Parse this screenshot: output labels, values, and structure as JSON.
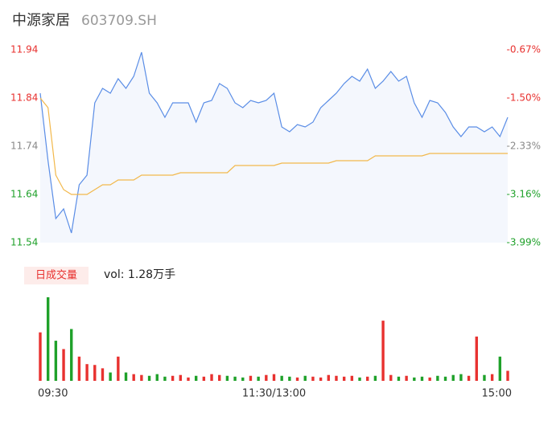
{
  "chart_data": {
    "type": "intraday",
    "title": "中源家居",
    "subtitle": "603709.SH",
    "volume_tag": "日成交量",
    "volume_label": "vol: 1.28万手",
    "xlim": [
      0,
      60
    ],
    "xticks": [
      {
        "value": 0,
        "label": "09:30"
      },
      {
        "value": 30,
        "label": "11:30/13:00"
      },
      {
        "value": 60,
        "label": "15:00"
      }
    ],
    "ylim": [
      11.54,
      11.94
    ],
    "yticks": [
      11.94,
      11.84,
      11.74,
      11.64,
      11.54
    ],
    "y2lim": [
      -3.99,
      -0.67
    ],
    "y2ticks": [
      {
        "value": -0.67,
        "label": "-0.67%"
      },
      {
        "value": -1.5,
        "label": "-1.50%"
      },
      {
        "value": -2.33,
        "label": "-2.33%"
      },
      {
        "value": -3.16,
        "label": "-3.16%"
      },
      {
        "value": -3.99,
        "label": "-3.99%"
      }
    ],
    "series": [
      {
        "name": "price",
        "color": "#5a8de6",
        "values": [
          11.85,
          11.71,
          11.59,
          11.61,
          11.56,
          11.66,
          11.68,
          11.83,
          11.86,
          11.85,
          11.88,
          11.86,
          11.885,
          11.935,
          11.85,
          11.83,
          11.8,
          11.83,
          11.83,
          11.83,
          11.79,
          11.83,
          11.835,
          11.87,
          11.86,
          11.83,
          11.82,
          11.835,
          11.83,
          11.835,
          11.85,
          11.78,
          11.77,
          11.785,
          11.78,
          11.79,
          11.82,
          11.835,
          11.85,
          11.87,
          11.885,
          11.875,
          11.9,
          11.86,
          11.875,
          11.895,
          11.875,
          11.885,
          11.83,
          11.8,
          11.835,
          11.83,
          11.81,
          11.78,
          11.76,
          11.78,
          11.78,
          11.77,
          11.78,
          11.76,
          11.8
        ]
      },
      {
        "name": "average",
        "color": "#f2b84b",
        "values": [
          11.84,
          11.82,
          11.68,
          11.65,
          11.64,
          11.64,
          11.64,
          11.65,
          11.66,
          11.66,
          11.67,
          11.67,
          11.67,
          11.68,
          11.68,
          11.68,
          11.68,
          11.68,
          11.685,
          11.685,
          11.685,
          11.685,
          11.685,
          11.685,
          11.685,
          11.7,
          11.7,
          11.7,
          11.7,
          11.7,
          11.7,
          11.705,
          11.705,
          11.705,
          11.705,
          11.705,
          11.705,
          11.705,
          11.71,
          11.71,
          11.71,
          11.71,
          11.71,
          11.72,
          11.72,
          11.72,
          11.72,
          11.72,
          11.72,
          11.72,
          11.725,
          11.725,
          11.725,
          11.725,
          11.725,
          11.725,
          11.725,
          11.725,
          11.725,
          11.725,
          11.725
        ]
      }
    ],
    "volume": {
      "ylim": [
        0,
        500
      ],
      "up_color": "#e8312f",
      "down_color": "#1fa12a",
      "values": [
        290,
        500,
        240,
        190,
        310,
        145,
        100,
        95,
        75,
        50,
        145,
        50,
        40,
        35,
        30,
        40,
        25,
        30,
        35,
        20,
        30,
        25,
        40,
        35,
        30,
        25,
        20,
        30,
        25,
        35,
        40,
        30,
        25,
        20,
        30,
        25,
        20,
        35,
        30,
        25,
        30,
        20,
        25,
        30,
        360,
        35,
        25,
        30,
        20,
        25,
        20,
        30,
        25,
        35,
        40,
        30,
        265,
        35,
        40,
        145,
        60
      ]
    }
  }
}
